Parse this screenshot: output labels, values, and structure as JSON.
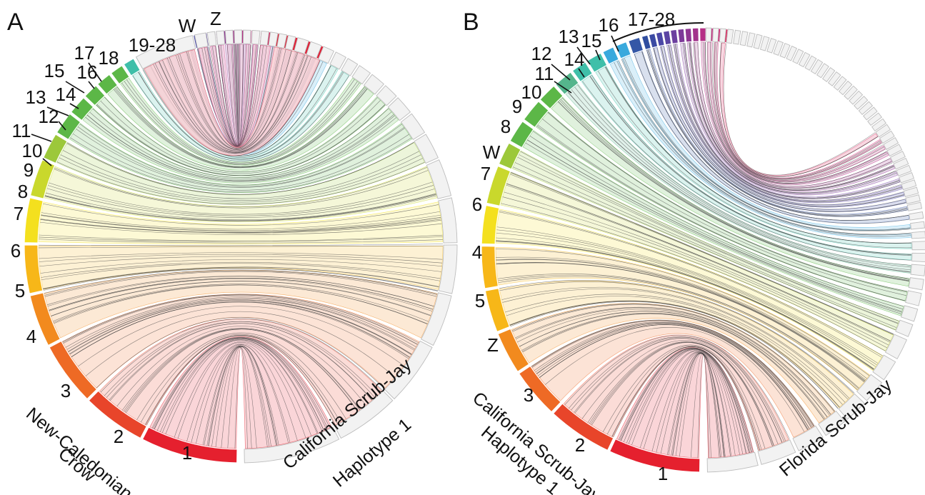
{
  "panels": [
    {
      "letter": "A",
      "left_species": [
        "New-Caledonian",
        "Crow"
      ],
      "right_species": [
        "California Scrub-Jay",
        "Haplotype 1"
      ],
      "left_chromosomes": [
        "1",
        "2",
        "3",
        "4",
        "5",
        "6",
        "7",
        "8",
        "9",
        "10",
        "11",
        "12",
        "13",
        "14",
        "15",
        "16",
        "17",
        "18",
        "19-28",
        "W",
        "Z"
      ]
    },
    {
      "letter": "B",
      "left_species": [
        "California Scrub-Jay",
        "Haplotype 1"
      ],
      "right_species": [
        "Florida Scrub-Jay"
      ],
      "left_chromosomes": [
        "1",
        "2",
        "3",
        "Z",
        "5",
        "4",
        "6",
        "7",
        "W",
        "8",
        "9",
        "10",
        "11",
        "12",
        "13",
        "14",
        "15",
        "16",
        "17-28"
      ]
    }
  ],
  "colors": {
    "chr1": "#e5202e",
    "chr2": "#e8452a",
    "chr3": "#ee6a25",
    "chr4": "#f28a1e",
    "chr5": "#f7b718",
    "chr6": "#f4e01e",
    "chr7": "#c9d82c",
    "chr8": "#9cc83a",
    "green": "#5cb747",
    "teal": "#3fbfa9",
    "cyan": "#39a9dd",
    "blue": "#3457a6",
    "purple": "#7a3a97",
    "magenta": "#c6307c",
    "grey_segment": "#f2f2f2"
  }
}
